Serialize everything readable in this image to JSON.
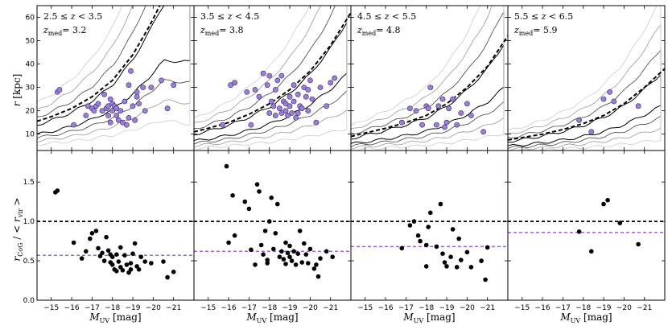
{
  "figure": {
    "xlabel": "M_UV [mag]",
    "xlabel_main": "M",
    "xlabel_sub": "UV",
    "xlabel_unit": " [mag]",
    "top_ylabel_main": "r",
    "top_ylabel_unit": " [kpc]",
    "bottom_ylabel": "r_CoG / < r_vir >",
    "bottom_ylabel_main": "r",
    "bottom_ylabel_sub1": "CoG",
    "bottom_ylabel_mid": " / < ",
    "bottom_ylabel_main2": "r",
    "bottom_ylabel_sub2": "vir",
    "bottom_ylabel_end": " >"
  },
  "chart_data": {
    "type": "scatter",
    "xlim": [
      -14.3,
      -22.0
    ],
    "x_ticks": [
      -15,
      -16,
      -17,
      -18,
      -19,
      -20,
      -21
    ],
    "x_tick_labels": [
      "−15",
      "−16",
      "−17",
      "−18",
      "−19",
      "−20",
      "−21"
    ],
    "top_ylim": [
      3,
      65
    ],
    "top_y_ticks": [
      10,
      20,
      30,
      40,
      50,
      60
    ],
    "bottom_ylim": [
      0.0,
      1.9
    ],
    "bottom_y_ticks": [
      0.0,
      0.5,
      1.0,
      1.5
    ],
    "bottom_y_tick_labels": [
      "0.0",
      "0.5",
      "1.0",
      "1.5"
    ],
    "colors": {
      "points_top": "#9b7fd6",
      "points_bottom": "#000000",
      "virial_ratio_line": "#000000",
      "median_ratio_line": "#9966dd",
      "contours": [
        "#000000",
        "#555555",
        "#999999",
        "#cccccc"
      ]
    },
    "panels": [
      {
        "label_z": "2.5 ≤ z < 3.5",
        "label_z_parts": [
          "2.5 ≤ ",
          "z",
          " < 3.5"
        ],
        "label_zmed": "z_med = 3.2",
        "zmed_value": "= 3.2",
        "virial_curve": {
          "x": [
            -14.3,
            -15,
            -16,
            -17,
            -18,
            -19,
            -19.8,
            -20.5
          ],
          "y": [
            15.5,
            17.5,
            21,
            26,
            33,
            44,
            56,
            68
          ]
        },
        "ratio_line": 1.0,
        "median_ratio": 0.57,
        "points_r_kpc": [
          [
            -15.3,
            28
          ],
          [
            -15.4,
            29
          ],
          [
            -16.1,
            14
          ],
          [
            -16.7,
            18
          ],
          [
            -16.8,
            22
          ],
          [
            -17.0,
            21
          ],
          [
            -17.1,
            20
          ],
          [
            -17.2,
            22
          ],
          [
            -17.3,
            23
          ],
          [
            -17.5,
            20
          ],
          [
            -17.6,
            27
          ],
          [
            -17.7,
            21
          ],
          [
            -17.8,
            18
          ],
          [
            -17.8,
            22
          ],
          [
            -17.9,
            15
          ],
          [
            -18.0,
            23
          ],
          [
            -18.0,
            20
          ],
          [
            -18.1,
            22
          ],
          [
            -18.2,
            18
          ],
          [
            -18.2,
            21
          ],
          [
            -18.3,
            16
          ],
          [
            -18.4,
            20
          ],
          [
            -18.5,
            15
          ],
          [
            -18.6,
            24
          ],
          [
            -18.7,
            14
          ],
          [
            -18.8,
            31
          ],
          [
            -18.8,
            17
          ],
          [
            -19.0,
            22
          ],
          [
            -19.1,
            16
          ],
          [
            -19.2,
            28
          ],
          [
            -19.3,
            23
          ],
          [
            -19.5,
            30
          ],
          [
            -19.6,
            20
          ],
          [
            -19.9,
            30
          ],
          [
            -20.4,
            33
          ],
          [
            -20.7,
            21
          ],
          [
            -21.0,
            31
          ],
          [
            -18.9,
            37
          ],
          [
            -19.2,
            26
          ],
          [
            -17.9,
            25
          ]
        ],
        "points_ratio": [
          [
            -15.2,
            1.37
          ],
          [
            -15.3,
            1.39
          ],
          [
            -16.1,
            0.73
          ],
          [
            -16.5,
            0.53
          ],
          [
            -16.7,
            0.62
          ],
          [
            -16.9,
            0.78
          ],
          [
            -17.0,
            0.85
          ],
          [
            -17.2,
            0.88
          ],
          [
            -17.3,
            0.66
          ],
          [
            -17.5,
            0.6
          ],
          [
            -17.6,
            0.5
          ],
          [
            -17.7,
            0.8
          ],
          [
            -17.8,
            0.63
          ],
          [
            -17.9,
            0.58
          ],
          [
            -17.9,
            0.48
          ],
          [
            -18.0,
            0.55
          ],
          [
            -18.0,
            0.45
          ],
          [
            -18.1,
            0.39
          ],
          [
            -18.2,
            0.58
          ],
          [
            -18.2,
            0.37
          ],
          [
            -18.3,
            0.49
          ],
          [
            -18.4,
            0.67
          ],
          [
            -18.4,
            0.42
          ],
          [
            -18.5,
            0.38
          ],
          [
            -18.6,
            0.57
          ],
          [
            -18.7,
            0.45
          ],
          [
            -18.8,
            0.35
          ],
          [
            -18.9,
            0.47
          ],
          [
            -18.9,
            0.39
          ],
          [
            -19.0,
            0.59
          ],
          [
            -19.1,
            0.72
          ],
          [
            -19.2,
            0.43
          ],
          [
            -19.3,
            0.39
          ],
          [
            -19.4,
            0.55
          ],
          [
            -19.6,
            0.49
          ],
          [
            -19.9,
            0.47
          ],
          [
            -20.5,
            0.49
          ],
          [
            -20.7,
            0.29
          ],
          [
            -21.0,
            0.36
          ],
          [
            -17.4,
            0.56
          ]
        ]
      },
      {
        "label_z": "3.5 ≤ z < 4.5",
        "label_z_parts": [
          "3.5 ≤ ",
          "z",
          " < 4.5"
        ],
        "label_zmed": "z_med = 3.8",
        "zmed_value": "= 3.8",
        "virial_curve": {
          "x": [
            -14.3,
            -15,
            -16,
            -17,
            -18,
            -19,
            -20,
            -21,
            -22
          ],
          "y": [
            11,
            12.5,
            15,
            18.5,
            23,
            29,
            37,
            48,
            62
          ]
        },
        "ratio_line": 1.0,
        "median_ratio": 0.62,
        "points_r_kpc": [
          [
            -15.7,
            14
          ],
          [
            -16.1,
            31
          ],
          [
            -16.3,
            32
          ],
          [
            -16.9,
            28
          ],
          [
            -17.1,
            14
          ],
          [
            -17.3,
            29
          ],
          [
            -17.5,
            26
          ],
          [
            -17.7,
            36
          ],
          [
            -17.9,
            31
          ],
          [
            -18.0,
            35
          ],
          [
            -18.1,
            24
          ],
          [
            -18.2,
            22
          ],
          [
            -18.3,
            29
          ],
          [
            -18.3,
            18
          ],
          [
            -18.4,
            33
          ],
          [
            -18.5,
            21
          ],
          [
            -18.6,
            35
          ],
          [
            -18.6,
            19
          ],
          [
            -18.7,
            24
          ],
          [
            -18.8,
            20
          ],
          [
            -18.9,
            18
          ],
          [
            -19.0,
            26
          ],
          [
            -19.0,
            22
          ],
          [
            -19.1,
            19
          ],
          [
            -19.2,
            31
          ],
          [
            -19.2,
            24
          ],
          [
            -19.3,
            17
          ],
          [
            -19.4,
            27
          ],
          [
            -19.5,
            22
          ],
          [
            -19.6,
            21
          ],
          [
            -19.7,
            30
          ],
          [
            -19.8,
            26
          ],
          [
            -19.9,
            20
          ],
          [
            -20.0,
            33
          ],
          [
            -20.1,
            25
          ],
          [
            -20.3,
            15
          ],
          [
            -20.5,
            30
          ],
          [
            -20.8,
            22
          ],
          [
            -21.0,
            32
          ],
          [
            -21.2,
            34
          ],
          [
            -18.8,
            23
          ],
          [
            -19.4,
            19
          ],
          [
            -18.0,
            19
          ],
          [
            -19.9,
            29
          ]
        ],
        "points_ratio": [
          [
            -15.9,
            1.7
          ],
          [
            -16.0,
            0.73
          ],
          [
            -16.2,
            1.33
          ],
          [
            -16.3,
            0.82
          ],
          [
            -16.8,
            1.25
          ],
          [
            -17.0,
            1.16
          ],
          [
            -17.1,
            0.64
          ],
          [
            -17.3,
            0.45
          ],
          [
            -17.4,
            1.47
          ],
          [
            -17.5,
            1.38
          ],
          [
            -17.6,
            0.7
          ],
          [
            -17.7,
            0.58
          ],
          [
            -17.8,
            0.88
          ],
          [
            -17.9,
            0.51
          ],
          [
            -17.9,
            0.47
          ],
          [
            -18.0,
            1.0
          ],
          [
            -18.1,
            1.3
          ],
          [
            -18.2,
            0.65
          ],
          [
            -18.3,
            0.85
          ],
          [
            -18.4,
            1.22
          ],
          [
            -18.5,
            0.55
          ],
          [
            -18.6,
            0.62
          ],
          [
            -18.7,
            0.52
          ],
          [
            -18.8,
            0.73
          ],
          [
            -18.8,
            0.46
          ],
          [
            -18.9,
            0.6
          ],
          [
            -19.0,
            0.69
          ],
          [
            -19.0,
            0.55
          ],
          [
            -19.1,
            0.5
          ],
          [
            -19.2,
            0.62
          ],
          [
            -19.3,
            0.45
          ],
          [
            -19.4,
            0.59
          ],
          [
            -19.5,
            0.88
          ],
          [
            -19.6,
            0.48
          ],
          [
            -19.7,
            0.72
          ],
          [
            -19.8,
            0.58
          ],
          [
            -19.9,
            0.47
          ],
          [
            -20.0,
            0.65
          ],
          [
            -20.2,
            0.4
          ],
          [
            -20.3,
            0.45
          ],
          [
            -20.4,
            0.3
          ],
          [
            -20.5,
            0.53
          ],
          [
            -20.8,
            0.62
          ],
          [
            -21.1,
            0.55
          ]
        ]
      },
      {
        "label_z": "4.5 ≤ z < 5.5",
        "label_z_parts": [
          "4.5 ≤ ",
          "z",
          " < 5.5"
        ],
        "label_zmed": "z_med = 4.8",
        "zmed_value": "= 4.8",
        "virial_curve": {
          "x": [
            -14.3,
            -15,
            -16,
            -17,
            -18,
            -19,
            -20,
            -21,
            -22
          ],
          "y": [
            9,
            10.5,
            12.5,
            15,
            18,
            23,
            30,
            39,
            52
          ]
        },
        "ratio_line": 1.0,
        "median_ratio": 0.68,
        "points_r_kpc": [
          [
            -16.8,
            15
          ],
          [
            -17.2,
            21
          ],
          [
            -17.5,
            20
          ],
          [
            -17.8,
            14
          ],
          [
            -18.0,
            22
          ],
          [
            -18.1,
            21
          ],
          [
            -18.2,
            30
          ],
          [
            -18.5,
            14
          ],
          [
            -18.6,
            22
          ],
          [
            -18.8,
            25
          ],
          [
            -18.9,
            13
          ],
          [
            -19.0,
            15
          ],
          [
            -19.1,
            21
          ],
          [
            -19.3,
            25
          ],
          [
            -19.5,
            14
          ],
          [
            -19.7,
            19
          ],
          [
            -20.0,
            23
          ],
          [
            -20.2,
            18
          ],
          [
            -20.8,
            11
          ]
        ],
        "points_ratio": [
          [
            -16.8,
            0.66
          ],
          [
            -17.2,
            0.95
          ],
          [
            -17.4,
            1.0
          ],
          [
            -17.6,
            0.82
          ],
          [
            -17.7,
            0.75
          ],
          [
            -18.0,
            0.7
          ],
          [
            -18.0,
            0.43
          ],
          [
            -18.1,
            0.93
          ],
          [
            -18.2,
            1.11
          ],
          [
            -18.5,
            0.68
          ],
          [
            -18.7,
            1.22
          ],
          [
            -18.8,
            0.59
          ],
          [
            -18.9,
            0.48
          ],
          [
            -19.0,
            0.43
          ],
          [
            -19.2,
            0.55
          ],
          [
            -19.3,
            0.9
          ],
          [
            -19.5,
            0.42
          ],
          [
            -19.6,
            0.78
          ],
          [
            -19.7,
            0.51
          ],
          [
            -20.0,
            0.61
          ],
          [
            -20.2,
            0.42
          ],
          [
            -20.7,
            0.5
          ],
          [
            -20.9,
            0.26
          ],
          [
            -21.0,
            0.67
          ]
        ]
      },
      {
        "label_z": "5.5 ≤ z < 6.5",
        "label_z_parts": [
          "5.5 ≤ ",
          "z",
          " < 6.5"
        ],
        "label_zmed": "z_med = 5.9",
        "zmed_value": "= 5.9",
        "virial_curve": {
          "x": [
            -14.3,
            -15,
            -16,
            -17,
            -18,
            -19,
            -20,
            -21,
            -22
          ],
          "y": [
            7.5,
            8.5,
            10,
            12,
            14.5,
            18,
            23,
            30,
            38
          ]
        },
        "ratio_line": 1.0,
        "median_ratio": 0.86,
        "points_r_kpc": [
          [
            -17.8,
            16
          ],
          [
            -18.4,
            11
          ],
          [
            -19.0,
            25
          ],
          [
            -19.3,
            28
          ],
          [
            -19.5,
            24
          ],
          [
            -20.7,
            22
          ]
        ],
        "points_ratio": [
          [
            -17.8,
            0.87
          ],
          [
            -18.4,
            0.62
          ],
          [
            -19.0,
            1.22
          ],
          [
            -19.2,
            1.27
          ],
          [
            -19.8,
            0.98
          ],
          [
            -20.7,
            0.71
          ]
        ]
      }
    ]
  }
}
